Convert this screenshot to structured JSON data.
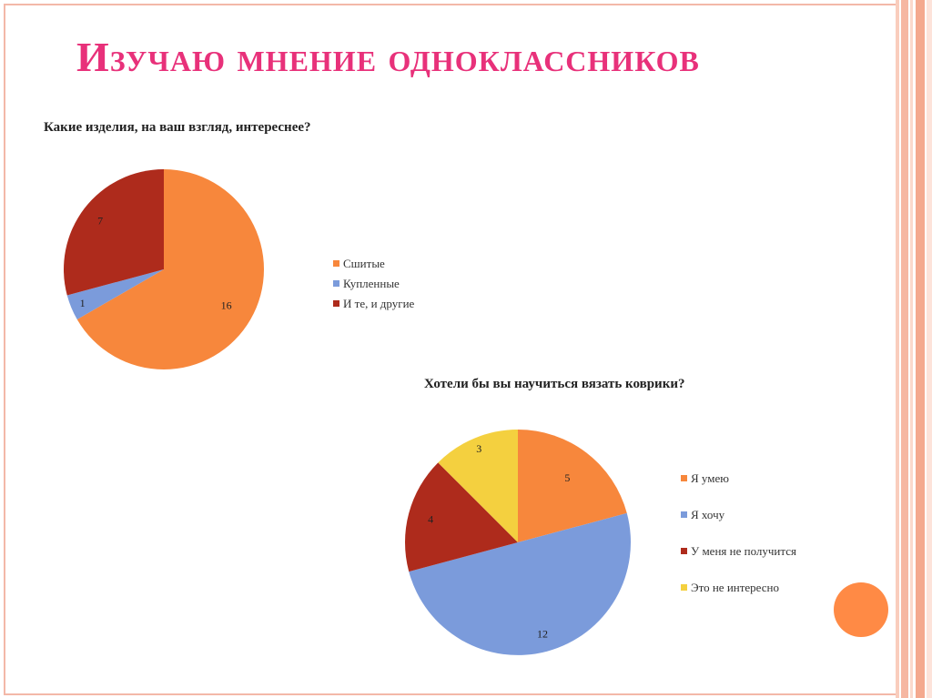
{
  "slide": {
    "title": "Изучаю мнение одноклассников",
    "colors": {
      "title": "#e8317a",
      "frame": "#f3b8a8",
      "accent_circle": "#ff8a45"
    }
  },
  "chart_data": [
    {
      "type": "pie",
      "title": "Какие изделия, на ваш взгляд, интереснее?",
      "categories": [
        "Сшитые",
        "Купленные",
        "И те, и другие"
      ],
      "values": [
        16,
        1,
        7
      ],
      "colors": [
        "#f7873c",
        "#7b9bdb",
        "#ae2b1c"
      ],
      "legend": "right"
    },
    {
      "type": "pie",
      "title": "Хотели бы вы научиться вязать коврики?",
      "categories": [
        "Я умею",
        "Я хочу",
        "У меня не получится",
        "Это не интересно"
      ],
      "values": [
        5,
        12,
        4,
        3
      ],
      "colors": [
        "#f7873c",
        "#7b9bdb",
        "#ae2b1c",
        "#f4d03f"
      ],
      "legend": "right"
    }
  ]
}
